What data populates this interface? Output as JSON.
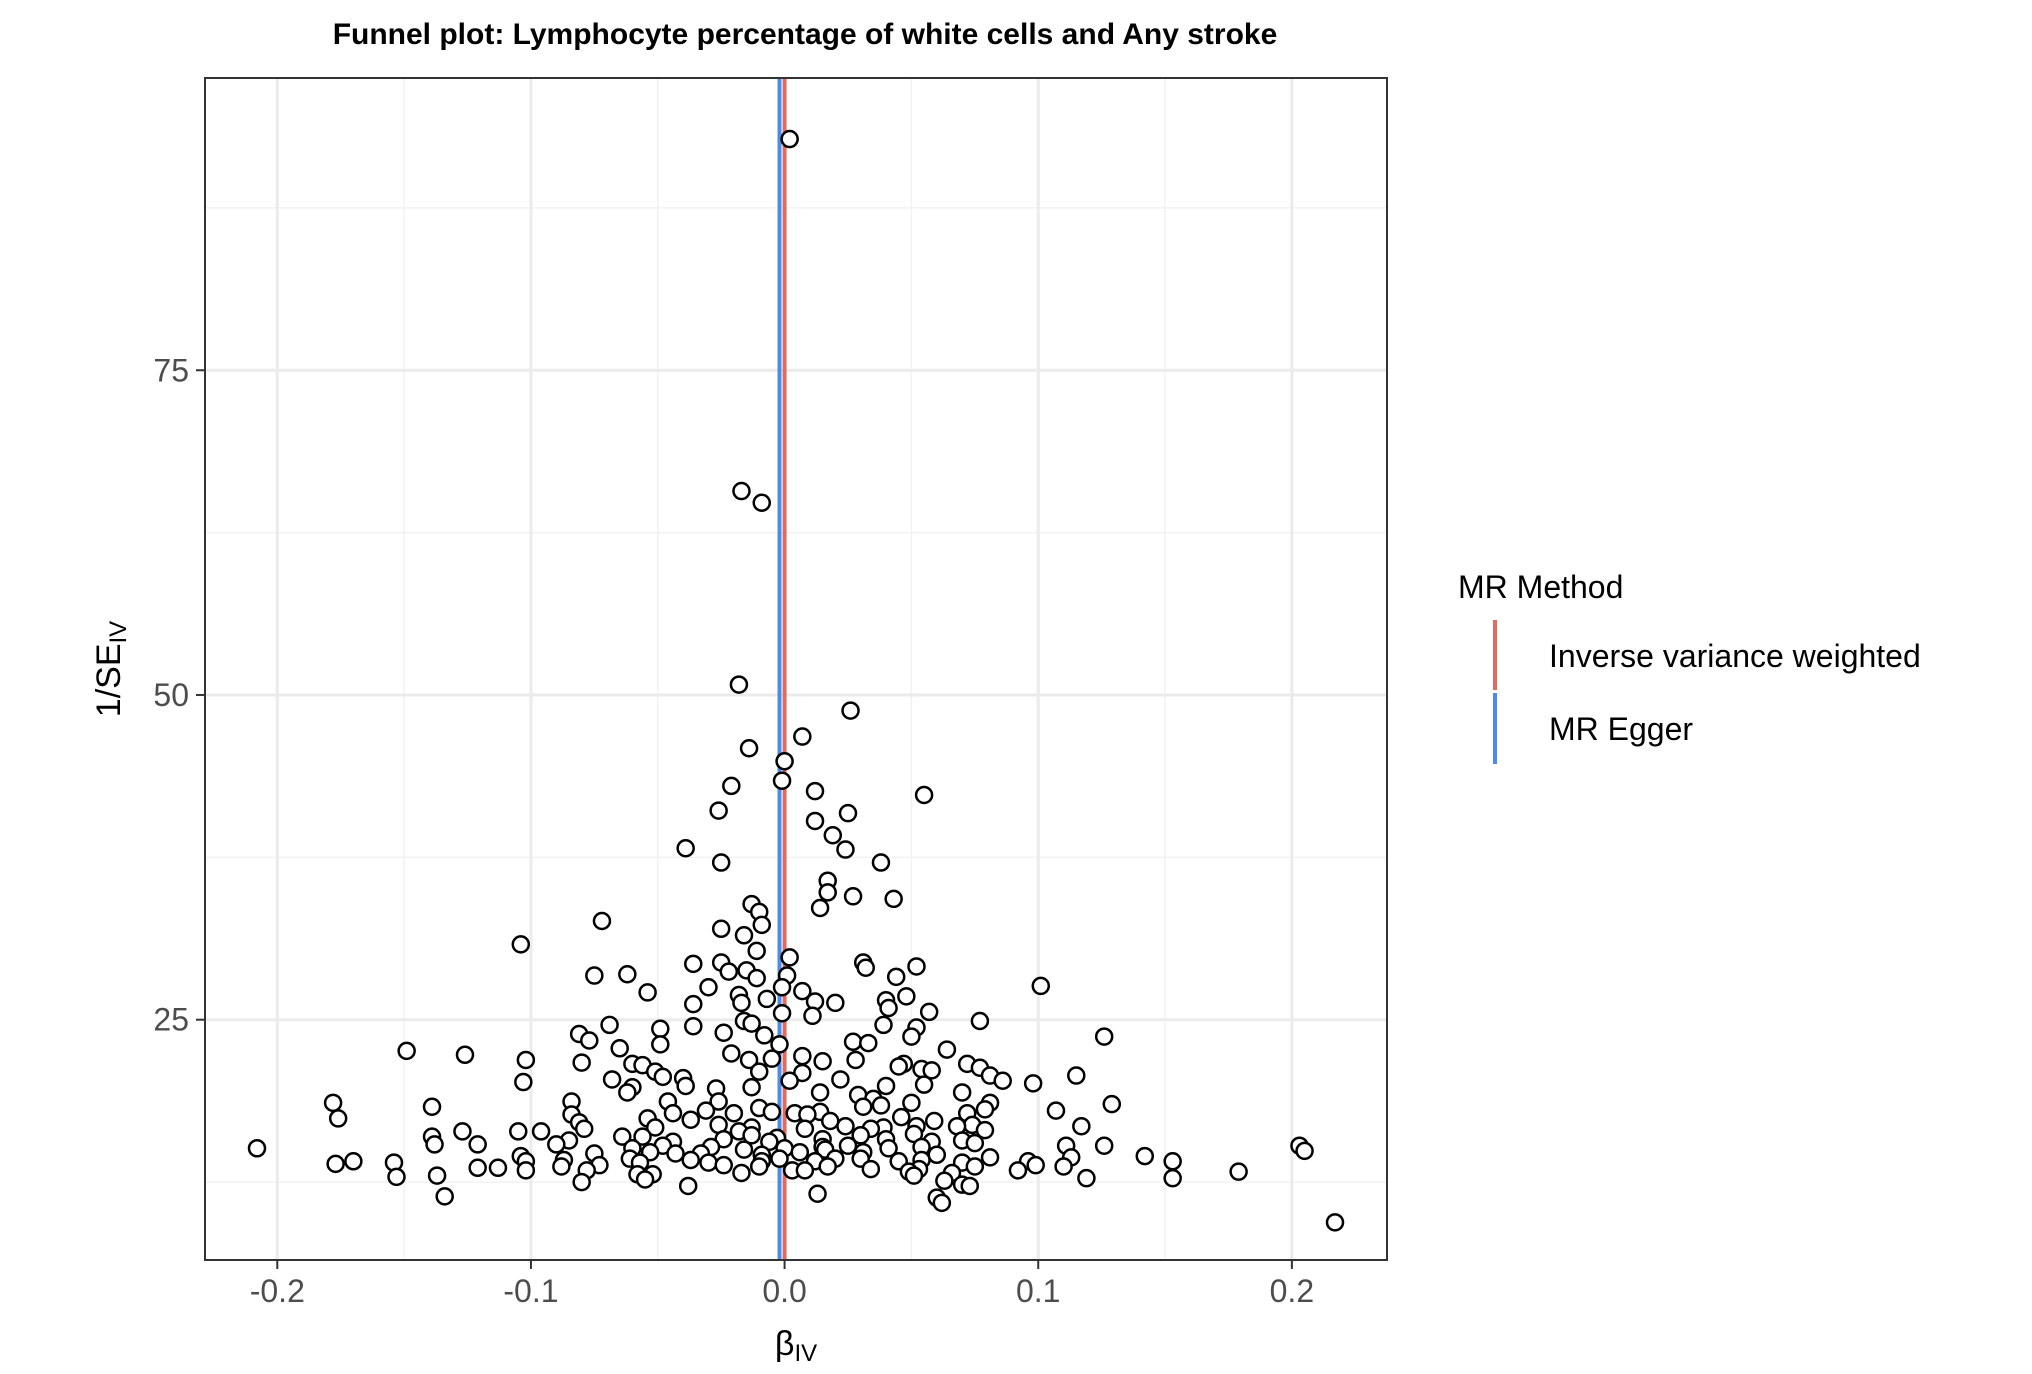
{
  "chart_data": {
    "type": "scatter",
    "title": "Funnel plot: Lymphocyte percentage of white cells and Any stroke",
    "xlabel": "β",
    "xlabel_sub": "IV",
    "ylabel": "1/SE",
    "ylabel_sub": "IV",
    "xlim": [
      -0.2285,
      0.2375
    ],
    "ylim": [
      6.5,
      97.5
    ],
    "x_ticks": [
      -0.2,
      -0.1,
      0.0,
      0.1,
      0.2
    ],
    "x_tick_labels": [
      "-0.2",
      "-0.1",
      "0.0",
      "0.1",
      "0.2"
    ],
    "y_ticks": [
      25,
      50,
      75
    ],
    "y_tick_labels": [
      "25",
      "50",
      "75"
    ],
    "grid": true,
    "legend": {
      "title": "MR Method",
      "position": "right",
      "entries": [
        {
          "label": "Inverse variance weighted",
          "color": "#e06c5f"
        },
        {
          "label": "MR Egger",
          "color": "#4c8be8"
        }
      ]
    },
    "estimates": [
      {
        "name": "Inverse variance weighted",
        "x": 0.0,
        "color": "#e06c5f"
      },
      {
        "name": "MR Egger",
        "x": -0.002,
        "color": "#4c8be8"
      }
    ],
    "points": [
      [
        0.002,
        92.8
      ],
      [
        -0.017,
        65.7
      ],
      [
        -0.009,
        64.8
      ],
      [
        -0.018,
        50.8
      ],
      [
        0.026,
        48.8
      ],
      [
        0.007,
        46.8
      ],
      [
        -0.014,
        45.9
      ],
      [
        0.0,
        44.9
      ],
      [
        -0.001,
        43.4
      ],
      [
        -0.021,
        43.0
      ],
      [
        0.012,
        42.6
      ],
      [
        0.055,
        42.3
      ],
      [
        -0.026,
        41.1
      ],
      [
        0.025,
        40.9
      ],
      [
        0.012,
        40.3
      ],
      [
        0.019,
        39.2
      ],
      [
        -0.039,
        38.2
      ],
      [
        0.024,
        38.1
      ],
      [
        0.038,
        37.1
      ],
      [
        -0.025,
        37.1
      ],
      [
        0.017,
        35.7
      ],
      [
        0.017,
        34.8
      ],
      [
        0.027,
        34.5
      ],
      [
        0.043,
        34.3
      ],
      [
        -0.013,
        33.9
      ],
      [
        -0.01,
        33.3
      ],
      [
        0.014,
        33.6
      ],
      [
        -0.072,
        32.6
      ],
      [
        -0.009,
        32.3
      ],
      [
        -0.025,
        32.0
      ],
      [
        -0.016,
        31.5
      ],
      [
        -0.104,
        30.8
      ],
      [
        -0.011,
        30.3
      ],
      [
        0.002,
        29.8
      ],
      [
        0.031,
        29.4
      ],
      [
        0.052,
        29.1
      ],
      [
        -0.036,
        29.3
      ],
      [
        -0.025,
        29.4
      ],
      [
        0.032,
        29.0
      ],
      [
        -0.015,
        28.8
      ],
      [
        -0.022,
        28.7
      ],
      [
        -0.062,
        28.5
      ],
      [
        -0.075,
        28.4
      ],
      [
        0.001,
        28.4
      ],
      [
        0.044,
        28.3
      ],
      [
        -0.011,
        28.2
      ],
      [
        -0.03,
        27.5
      ],
      [
        -0.001,
        27.5
      ],
      [
        0.101,
        27.6
      ],
      [
        0.007,
        27.2
      ],
      [
        -0.054,
        27.1
      ],
      [
        -0.018,
        26.9
      ],
      [
        0.048,
        26.8
      ],
      [
        -0.007,
        26.6
      ],
      [
        0.04,
        26.5
      ],
      [
        0.012,
        26.4
      ],
      [
        -0.017,
        26.3
      ],
      [
        0.02,
        26.3
      ],
      [
        -0.036,
        26.2
      ],
      [
        0.041,
        25.9
      ],
      [
        0.057,
        25.6
      ],
      [
        -0.001,
        25.5
      ],
      [
        0.011,
        25.3
      ],
      [
        -0.016,
        24.9
      ],
      [
        -0.013,
        24.7
      ],
      [
        0.077,
        24.9
      ],
      [
        -0.069,
        24.6
      ],
      [
        0.039,
        24.6
      ],
      [
        -0.036,
        24.5
      ],
      [
        0.052,
        24.4
      ],
      [
        -0.049,
        24.3
      ],
      [
        -0.024,
        24.0
      ],
      [
        -0.081,
        23.9
      ],
      [
        0.05,
        23.7
      ],
      [
        -0.008,
        23.8
      ],
      [
        0.126,
        23.7
      ],
      [
        0.027,
        23.3
      ],
      [
        -0.077,
        23.4
      ],
      [
        0.033,
        23.2
      ],
      [
        -0.049,
        23.1
      ],
      [
        -0.002,
        23.1
      ],
      [
        -0.065,
        22.8
      ],
      [
        0.064,
        22.7
      ],
      [
        -0.149,
        22.6
      ],
      [
        -0.021,
        22.4
      ],
      [
        -0.126,
        22.3
      ],
      [
        0.007,
        22.2
      ],
      [
        -0.005,
        22.0
      ],
      [
        -0.102,
        21.9
      ],
      [
        -0.014,
        21.9
      ],
      [
        0.028,
        21.9
      ],
      [
        0.015,
        21.8
      ],
      [
        -0.08,
        21.7
      ],
      [
        -0.06,
        21.6
      ],
      [
        0.047,
        21.6
      ],
      [
        0.072,
        21.6
      ],
      [
        -0.056,
        21.5
      ],
      [
        0.045,
        21.4
      ],
      [
        0.077,
        21.3
      ],
      [
        0.054,
        21.2
      ],
      [
        -0.051,
        21.0
      ],
      [
        0.058,
        21.1
      ],
      [
        -0.01,
        21.0
      ],
      [
        0.007,
        20.9
      ],
      [
        0.081,
        20.7
      ],
      [
        -0.048,
        20.6
      ],
      [
        0.115,
        20.7
      ],
      [
        -0.04,
        20.5
      ],
      [
        0.022,
        20.4
      ],
      [
        0.086,
        20.3
      ],
      [
        0.098,
        20.1
      ],
      [
        -0.068,
        20.4
      ],
      [
        -0.103,
        20.2
      ],
      [
        0.002,
        20.3
      ],
      [
        0.055,
        20.0
      ],
      [
        -0.06,
        19.8
      ],
      [
        0.04,
        19.9
      ],
      [
        -0.039,
        19.9
      ],
      [
        -0.013,
        19.8
      ],
      [
        -0.027,
        19.7
      ],
      [
        0.07,
        19.4
      ],
      [
        0.014,
        19.4
      ],
      [
        -0.062,
        19.4
      ],
      [
        0.029,
        19.2
      ],
      [
        0.035,
        18.9
      ],
      [
        -0.046,
        18.7
      ],
      [
        -0.084,
        18.7
      ],
      [
        0.081,
        18.6
      ],
      [
        0.129,
        18.5
      ],
      [
        -0.026,
        18.7
      ],
      [
        0.038,
        18.4
      ],
      [
        -0.178,
        18.6
      ],
      [
        0.05,
        18.6
      ],
      [
        0.031,
        18.3
      ],
      [
        -0.139,
        18.3
      ],
      [
        -0.01,
        18.2
      ],
      [
        0.079,
        18.1
      ],
      [
        0.107,
        18.0
      ],
      [
        -0.031,
        18.0
      ],
      [
        -0.005,
        17.9
      ],
      [
        0.014,
        17.9
      ],
      [
        -0.044,
        17.8
      ],
      [
        0.004,
        17.8
      ],
      [
        -0.02,
        17.8
      ],
      [
        0.009,
        17.7
      ],
      [
        0.072,
        17.8
      ],
      [
        -0.084,
        17.7
      ],
      [
        0.046,
        17.5
      ],
      [
        -0.176,
        17.4
      ],
      [
        -0.054,
        17.4
      ],
      [
        -0.037,
        17.3
      ],
      [
        0.059,
        17.2
      ],
      [
        0.018,
        17.2
      ],
      [
        -0.081,
        17.1
      ],
      [
        0.074,
        16.9
      ],
      [
        -0.026,
        16.9
      ],
      [
        0.024,
        16.8
      ],
      [
        0.068,
        16.8
      ],
      [
        0.117,
        16.8
      ],
      [
        0.039,
        16.7
      ],
      [
        -0.051,
        16.7
      ],
      [
        0.052,
        16.8
      ],
      [
        -0.013,
        16.7
      ],
      [
        0.034,
        16.6
      ],
      [
        -0.079,
        16.6
      ],
      [
        0.008,
        16.6
      ],
      [
        -0.018,
        16.4
      ],
      [
        0.079,
        16.5
      ],
      [
        -0.096,
        16.4
      ],
      [
        -0.105,
        16.4
      ],
      [
        -0.127,
        16.4
      ],
      [
        -0.139,
        16.0
      ],
      [
        0.051,
        16.2
      ],
      [
        0.03,
        16.1
      ],
      [
        -0.013,
        16.1
      ],
      [
        -0.064,
        16.0
      ],
      [
        -0.056,
        16.0
      ],
      [
        -0.003,
        15.9
      ],
      [
        -0.024,
        15.8
      ],
      [
        0.04,
        15.8
      ],
      [
        0.015,
        15.8
      ],
      [
        0.07,
        15.7
      ],
      [
        -0.085,
        15.7
      ],
      [
        0.058,
        15.6
      ],
      [
        0.075,
        15.5
      ],
      [
        -0.006,
        15.6
      ],
      [
        -0.044,
        15.6
      ],
      [
        -0.121,
        15.4
      ],
      [
        -0.138,
        15.4
      ],
      [
        0.111,
        15.3
      ],
      [
        -0.048,
        15.3
      ],
      [
        0.126,
        15.3
      ],
      [
        0.203,
        15.3
      ],
      [
        -0.09,
        15.4
      ],
      [
        -0.029,
        15.2
      ],
      [
        0.025,
        15.3
      ],
      [
        0.054,
        15.2
      ],
      [
        0.015,
        15.2
      ],
      [
        -0.06,
        15.1
      ],
      [
        -0.208,
        15.1
      ],
      [
        0.0,
        15.1
      ],
      [
        0.016,
        15.0
      ],
      [
        0.205,
        14.9
      ],
      [
        -0.016,
        15.0
      ],
      [
        0.041,
        15.1
      ],
      [
        0.031,
        14.8
      ],
      [
        0.006,
        14.8
      ],
      [
        -0.075,
        14.7
      ],
      [
        -0.053,
        14.8
      ],
      [
        -0.043,
        14.7
      ],
      [
        -0.033,
        14.7
      ],
      [
        -0.009,
        14.6
      ],
      [
        0.06,
        14.6
      ],
      [
        -0.104,
        14.5
      ],
      [
        0.142,
        14.5
      ],
      [
        0.081,
        14.4
      ],
      [
        0.113,
        14.4
      ],
      [
        0.02,
        14.3
      ],
      [
        -0.061,
        14.3
      ],
      [
        -0.037,
        14.2
      ],
      [
        0.03,
        14.3
      ],
      [
        -0.002,
        14.3
      ],
      [
        -0.087,
        14.2
      ],
      [
        -0.17,
        14.1
      ],
      [
        0.096,
        14.1
      ],
      [
        -0.009,
        14.1
      ],
      [
        0.012,
        14.1
      ],
      [
        0.054,
        14.2
      ],
      [
        0.153,
        14.1
      ],
      [
        -0.03,
        14.0
      ],
      [
        -0.102,
        14.1
      ],
      [
        -0.057,
        14.0
      ],
      [
        0.07,
        14.0
      ],
      [
        0.045,
        14.1
      ],
      [
        -0.154,
        14.0
      ],
      [
        -0.177,
        13.9
      ],
      [
        0.099,
        13.8
      ],
      [
        -0.073,
        13.8
      ],
      [
        -0.024,
        13.8
      ],
      [
        -0.01,
        13.7
      ],
      [
        0.017,
        13.7
      ],
      [
        0.075,
        13.7
      ],
      [
        0.11,
        13.7
      ],
      [
        -0.088,
        13.7
      ],
      [
        -0.121,
        13.6
      ],
      [
        -0.113,
        13.6
      ],
      [
        0.034,
        13.5
      ],
      [
        0.053,
        13.5
      ],
      [
        0.003,
        13.4
      ],
      [
        0.008,
        13.4
      ],
      [
        -0.102,
        13.4
      ],
      [
        0.092,
        13.4
      ],
      [
        -0.078,
        13.4
      ],
      [
        0.049,
        13.3
      ],
      [
        0.066,
        13.2
      ],
      [
        -0.058,
        13.1
      ],
      [
        0.179,
        13.3
      ],
      [
        -0.017,
        13.2
      ],
      [
        -0.052,
        13.1
      ],
      [
        0.051,
        13.0
      ],
      [
        -0.137,
        13.0
      ],
      [
        -0.153,
        12.9
      ],
      [
        0.119,
        12.8
      ],
      [
        0.153,
        12.8
      ],
      [
        0.063,
        12.6
      ],
      [
        -0.08,
        12.5
      ],
      [
        0.07,
        12.3
      ],
      [
        -0.055,
        12.7
      ],
      [
        -0.038,
        12.2
      ],
      [
        0.073,
        12.2
      ],
      [
        0.013,
        11.6
      ],
      [
        -0.134,
        11.4
      ],
      [
        0.06,
        11.3
      ],
      [
        0.062,
        10.9
      ],
      [
        0.217,
        9.4
      ]
    ]
  }
}
